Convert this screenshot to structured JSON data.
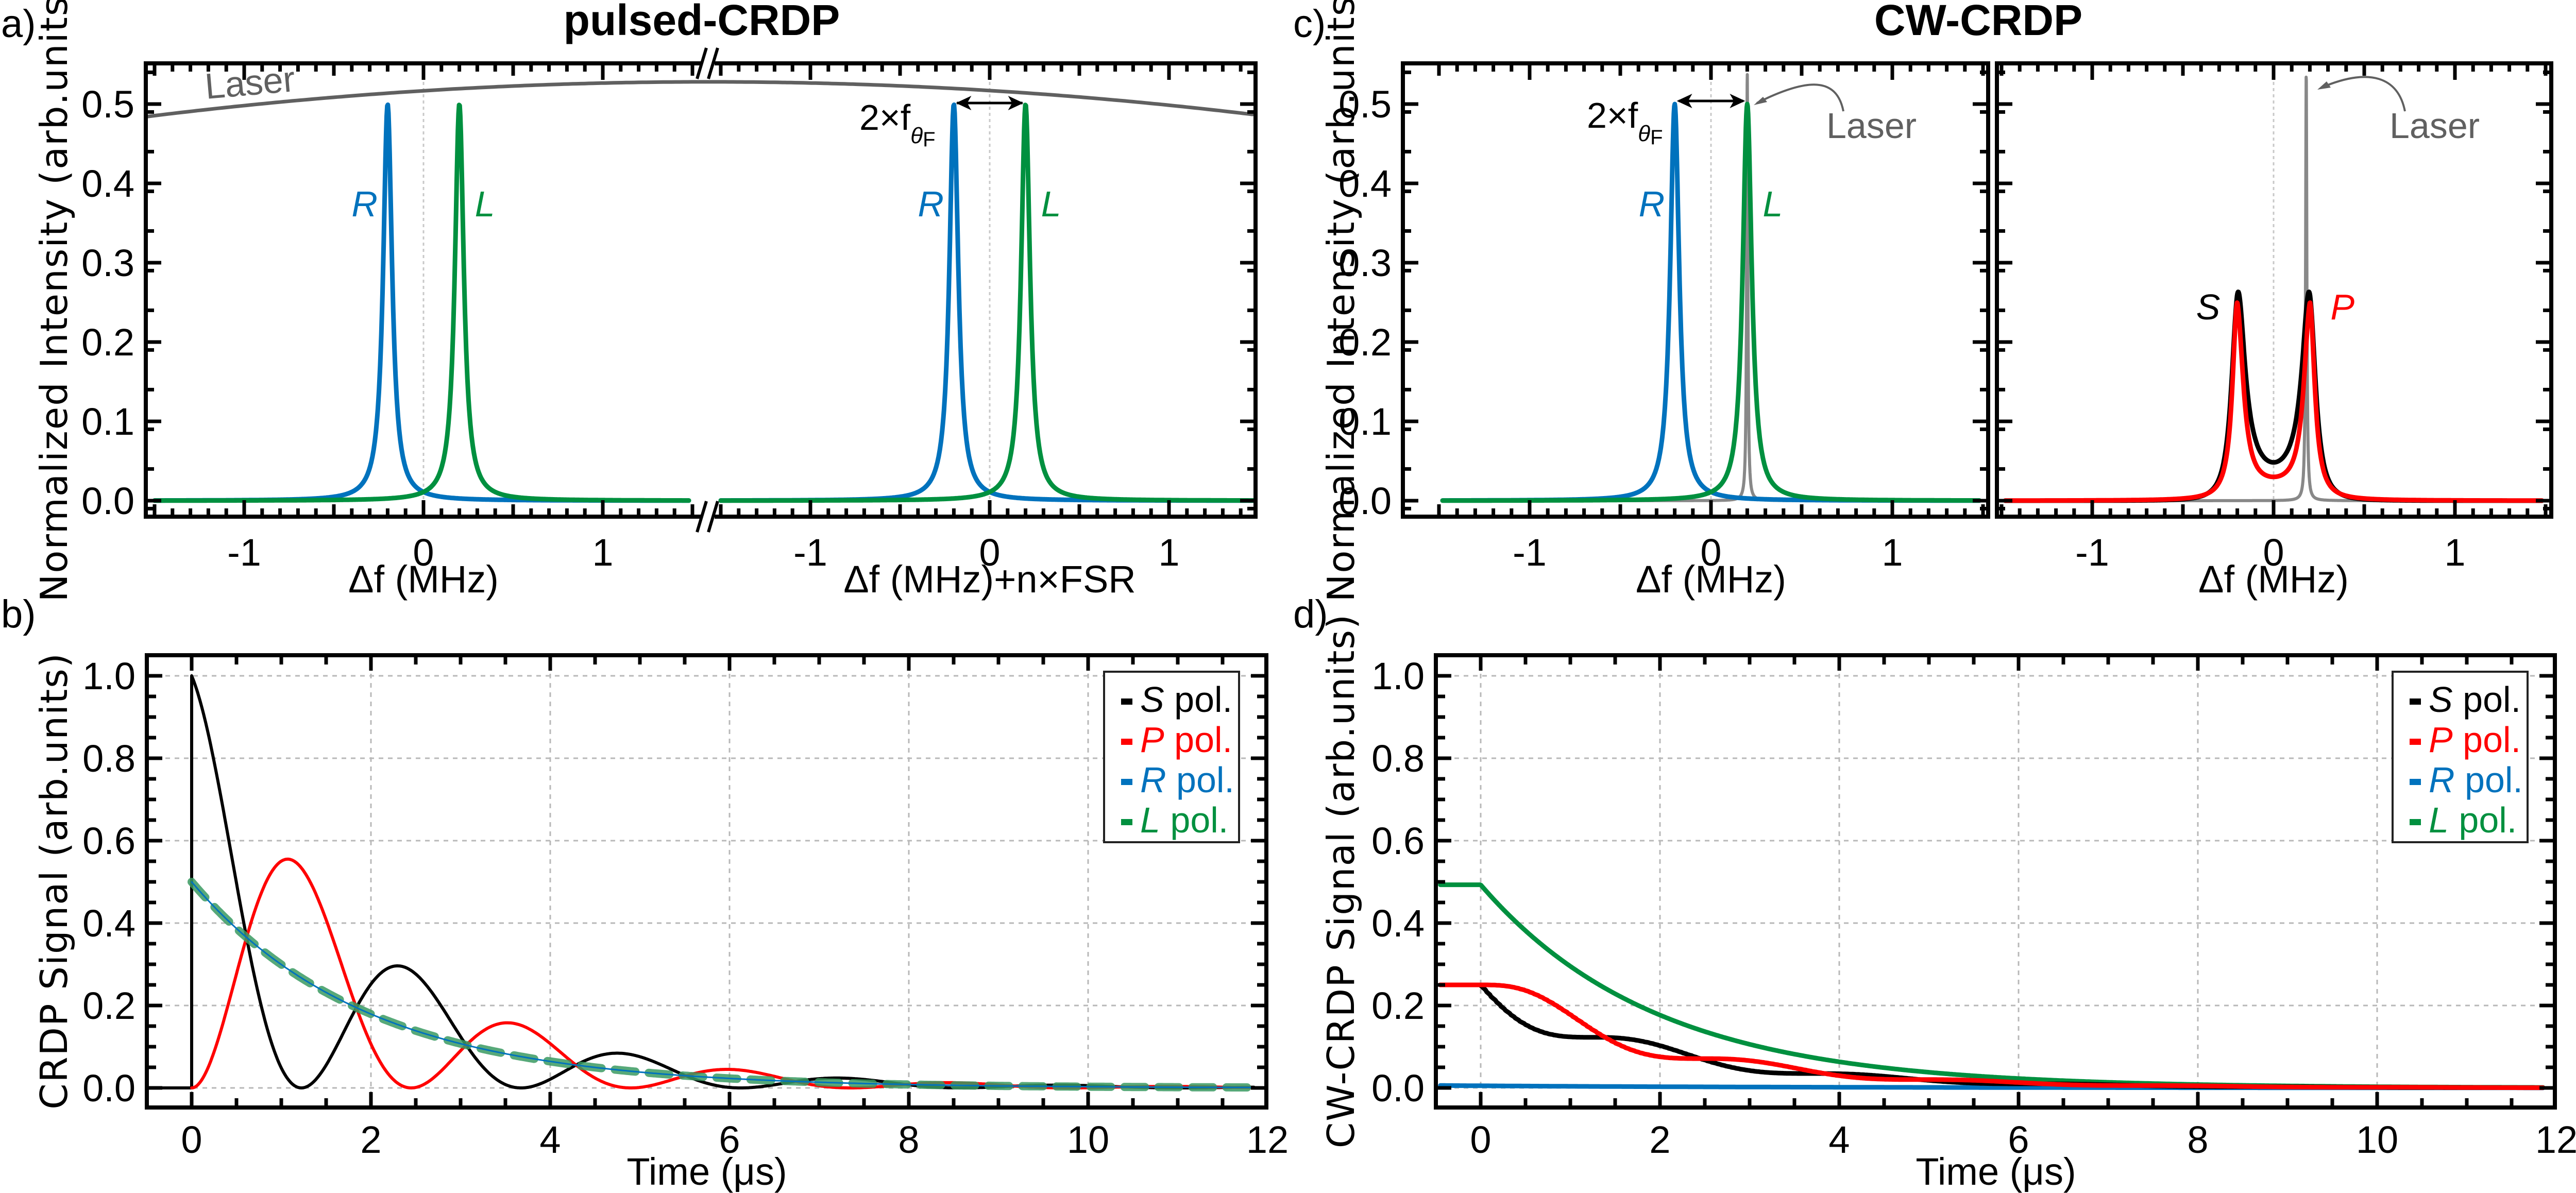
{
  "figure": {
    "titles": {
      "pulsed": "pulsed-CRDP",
      "cw": "CW-CRDP"
    },
    "panel_labels": {
      "a": "a)",
      "b": "b)",
      "c": "c)",
      "d": "d)"
    },
    "colors": {
      "S": "#000000",
      "P": "#ff0000",
      "R": "#0072bd",
      "L": "#00903f",
      "laser": "#606060",
      "laser_cw": "#888888",
      "grid": "#b8b8b8"
    }
  },
  "chart_data": [
    {
      "id": "a",
      "type": "line",
      "title": "pulsed-CRDP",
      "xlabel_left": "Δf (MHz)",
      "xlabel_right": "Δf (MHz)+n×FSR",
      "ylabel": "Normalized Intensity (arb.units)",
      "broken_x_axis": true,
      "xlim": [
        -1.5,
        1.5
      ],
      "ylim": [
        -0.02,
        0.55
      ],
      "xticks": [
        -1,
        0,
        1
      ],
      "xtick_labels": [
        "-1",
        "0",
        "1"
      ],
      "yticks": [
        0.0,
        0.1,
        0.2,
        0.3,
        0.4,
        0.5
      ],
      "ytick_labels": [
        "0.0",
        "0.1",
        "0.2",
        "0.3",
        "0.4",
        "0.5"
      ],
      "series": [
        {
          "name": "R",
          "model": "lorentzian",
          "center": -0.2,
          "amplitude": 0.5,
          "hwhm": 0.03
        },
        {
          "name": "L",
          "model": "lorentzian",
          "center": 0.2,
          "amplitude": 0.5,
          "hwhm": 0.03
        },
        {
          "name": "Laser",
          "model": "broad-envelope",
          "peak": 0.528,
          "edge_value": 0.485
        }
      ],
      "annotations": {
        "laser": "Laser",
        "R": "R",
        "L": "L",
        "splitting_main": "2×f",
        "splitting_sub": "θ",
        "splitting_subsub": "F"
      }
    },
    {
      "id": "c",
      "type": "line",
      "title": "CW-CRDP",
      "xlabel": "Δf (MHz)",
      "ylabel": "Normalized Intensity (arb.units)",
      "xlim": [
        -1.5,
        1.5
      ],
      "ylim": [
        -0.02,
        0.55
      ],
      "xticks": [
        -1,
        0,
        1
      ],
      "xtick_labels": [
        "-1",
        "0",
        "1"
      ],
      "yticks": [
        0.0,
        0.1,
        0.2,
        0.3,
        0.4,
        0.5
      ],
      "ytick_labels": [
        "0.0",
        "0.1",
        "0.2",
        "0.3",
        "0.4",
        "0.5"
      ],
      "left_series": [
        {
          "name": "R",
          "model": "lorentzian",
          "center": -0.2,
          "amplitude": 0.5,
          "hwhm": 0.03
        },
        {
          "name": "L",
          "model": "lorentzian",
          "center": 0.2,
          "amplitude": 0.5,
          "hwhm": 0.03
        },
        {
          "name": "Laser",
          "model": "narrow-line",
          "center": 0.2,
          "amplitude": 0.54,
          "hwhm": 0.004
        }
      ],
      "right_series": [
        {
          "name": "S",
          "peaks": [
            -0.2,
            0.2
          ],
          "peak_value": 0.26,
          "value_at_zero": 0.0
        },
        {
          "name": "P",
          "peaks": [
            -0.2,
            0.2
          ],
          "peak_value": 0.25,
          "value_at_zero": 0.03
        },
        {
          "name": "Laser",
          "model": "narrow-line",
          "center": 0.18,
          "amplitude": 0.54,
          "hwhm": 0.004
        }
      ],
      "annotations": {
        "laser": "Laser",
        "R": "R",
        "L": "L",
        "S": "S",
        "P": "P",
        "splitting_main": "2×f",
        "splitting_sub": "θ",
        "splitting_subsub": "F"
      }
    },
    {
      "id": "b",
      "type": "line",
      "xlabel": "Time (μs)",
      "ylabel": "CRDP Signal (arb.units)",
      "xlim": [
        -0.5,
        12
      ],
      "ylim": [
        -0.05,
        1.05
      ],
      "xticks": [
        0,
        2,
        4,
        6,
        8,
        10,
        12
      ],
      "xtick_labels": [
        "0",
        "2",
        "4",
        "6",
        "8",
        "10",
        "12"
      ],
      "yticks": [
        0.0,
        0.2,
        0.4,
        0.6,
        0.8,
        1.0
      ],
      "ytick_labels": [
        "0.0",
        "0.2",
        "0.4",
        "0.6",
        "0.8",
        "1.0"
      ],
      "grid": true,
      "decay_time_us": 1.95,
      "beat_period_us": 2.45,
      "series": [
        {
          "name": "S pol.",
          "initial": 1.0,
          "form": "exp*cos^2",
          "key_points": [
            [
              0,
              1.0
            ],
            [
              1.2,
              0.0
            ],
            [
              2.3,
              0.31
            ],
            [
              3.65,
              0.0
            ],
            [
              4.75,
              0.09
            ],
            [
              6.1,
              0.0
            ],
            [
              7.2,
              0.025
            ]
          ]
        },
        {
          "name": "P pol.",
          "initial": 0.0,
          "form": "exp*sin^2",
          "key_points": [
            [
              0,
              0.0
            ],
            [
              1.05,
              0.57
            ],
            [
              2.45,
              0.0
            ],
            [
              3.5,
              0.17
            ],
            [
              4.9,
              0.0
            ],
            [
              6.0,
              0.05
            ],
            [
              8.4,
              0.013
            ]
          ]
        },
        {
          "name": "R pol.",
          "initial": 0.5,
          "form": "exp"
        },
        {
          "name": "L pol.",
          "initial": 0.5,
          "form": "exp",
          "dashed": true
        }
      ],
      "legend": {
        "position": "top-right",
        "entries": [
          {
            "sym": "S",
            "text": " pol.",
            "key": "S"
          },
          {
            "sym": "P",
            "text": " pol.",
            "key": "P"
          },
          {
            "sym": "R",
            "text": " pol.",
            "key": "R"
          },
          {
            "sym": "L",
            "text": " pol.",
            "key": "L"
          }
        ]
      }
    },
    {
      "id": "d",
      "type": "line",
      "xlabel": "Time (μs)",
      "ylabel": "CW-CRDP Signal (arb.units)",
      "xlim": [
        -0.5,
        12
      ],
      "ylim": [
        -0.05,
        1.05
      ],
      "xticks": [
        0,
        2,
        4,
        6,
        8,
        10,
        12
      ],
      "xtick_labels": [
        "0",
        "2",
        "4",
        "6",
        "8",
        "10",
        "12"
      ],
      "yticks": [
        0.0,
        0.2,
        0.4,
        0.6,
        0.8,
        1.0
      ],
      "ytick_labels": [
        "0.0",
        "0.2",
        "0.4",
        "0.6",
        "0.8",
        "1.0"
      ],
      "grid": true,
      "decay_time_us": 1.95,
      "beat_period_us": 2.45,
      "series": [
        {
          "name": "S pol.",
          "initial": 0.25,
          "form": "integrated exp*cos^2",
          "key_points": [
            [
              0,
              0.25
            ],
            [
              1.3,
              0.135
            ],
            [
              3.3,
              0.04
            ]
          ]
        },
        {
          "name": "P pol.",
          "initial": 0.25,
          "form": "integrated exp*sin^2",
          "key_points": [
            [
              0,
              0.25
            ],
            [
              2.5,
              0.073
            ],
            [
              4.8,
              0.022
            ]
          ]
        },
        {
          "name": "R pol.",
          "initial": 0.006,
          "form": "exp"
        },
        {
          "name": "L pol.",
          "initial": 0.493,
          "form": "exp"
        }
      ],
      "legend": {
        "position": "top-right",
        "entries": [
          {
            "sym": "S",
            "text": " pol.",
            "key": "S"
          },
          {
            "sym": "P",
            "text": " pol.",
            "key": "P"
          },
          {
            "sym": "R",
            "text": " pol.",
            "key": "R"
          },
          {
            "sym": "L",
            "text": " pol.",
            "key": "L"
          }
        ]
      }
    }
  ]
}
